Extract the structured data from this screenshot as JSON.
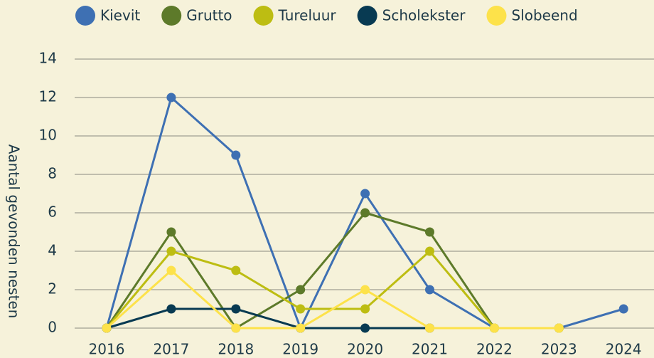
{
  "chart_data": {
    "type": "line",
    "y_label": "Aantal gevonden nesten",
    "categories": [
      "2016",
      "2017",
      "2018",
      "2019",
      "2020",
      "2021",
      "2022",
      "2023",
      "2024"
    ],
    "series": [
      {
        "name": "Kievit",
        "color": "#3e70b3",
        "values": [
          0,
          12,
          9,
          0,
          7,
          2,
          0,
          0,
          1
        ]
      },
      {
        "name": "Grutto",
        "color": "#5d7a2a",
        "values": [
          0,
          5,
          0,
          2,
          6,
          5,
          0,
          0,
          null
        ]
      },
      {
        "name": "Tureluur",
        "color": "#bdbd12",
        "values": [
          0,
          4,
          3,
          1,
          1,
          4,
          0,
          0,
          null
        ]
      },
      {
        "name": "Scholekster",
        "color": "#083a52",
        "values": [
          0,
          1,
          1,
          0,
          0,
          0,
          null,
          null,
          null
        ]
      },
      {
        "name": "Slobeend",
        "color": "#fde24a",
        "values": [
          0,
          3,
          0,
          0,
          2,
          0,
          0,
          0,
          null
        ]
      }
    ],
    "ylim": [
      0,
      14
    ],
    "yticks": [
      0,
      2,
      4,
      6,
      8,
      10,
      12,
      14
    ],
    "grid": true,
    "legend": "top"
  }
}
